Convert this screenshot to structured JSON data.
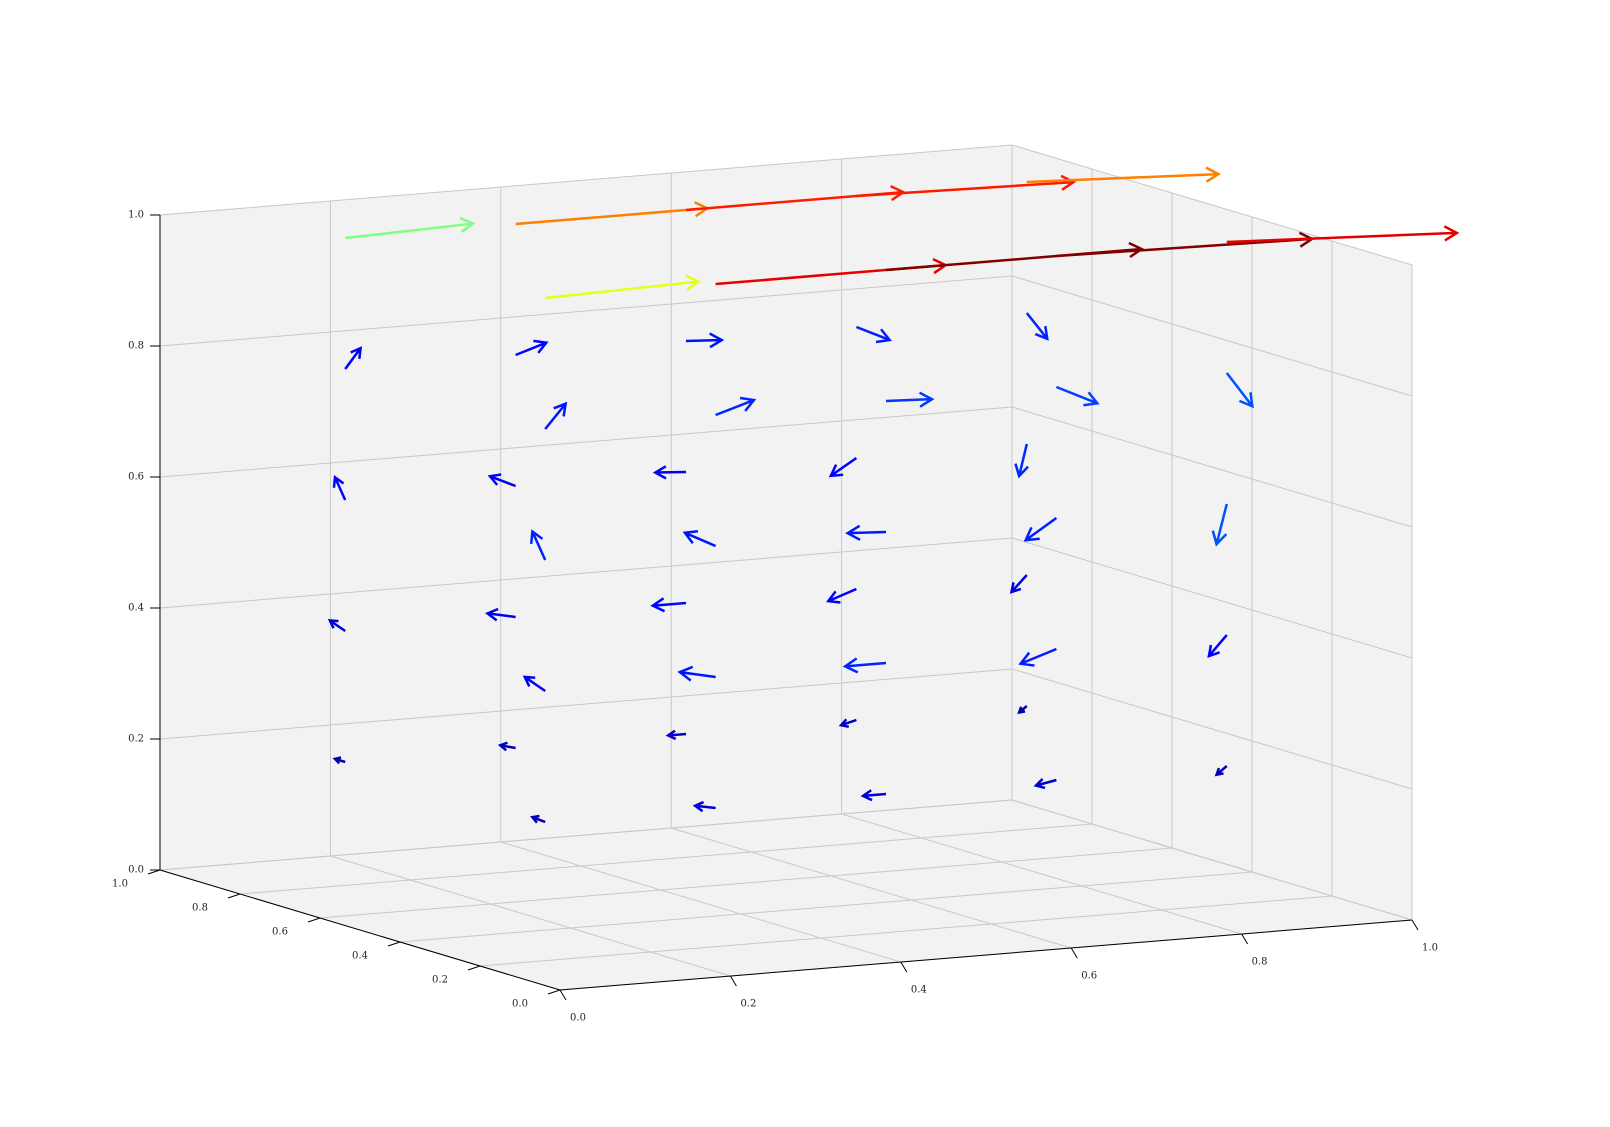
{
  "chart_data": {
    "type": "quiver3d",
    "xlim": [
      0,
      1
    ],
    "ylim": [
      0,
      1
    ],
    "zlim": [
      0,
      1
    ],
    "xticks": [
      {
        "value": 0,
        "label": "0.0"
      },
      {
        "value": 0.2,
        "label": "0.2"
      },
      {
        "value": 0.4,
        "label": "0.4"
      },
      {
        "value": 0.6,
        "label": "0.6"
      },
      {
        "value": 0.8,
        "label": "0.8"
      },
      {
        "value": 1,
        "label": "1.0"
      }
    ],
    "yticks": [
      {
        "value": 0,
        "label": "0.0"
      },
      {
        "value": 0.2,
        "label": "0.2"
      },
      {
        "value": 0.4,
        "label": "0.4"
      },
      {
        "value": 0.6,
        "label": "0.6"
      },
      {
        "value": 0.8,
        "label": "0.8"
      },
      {
        "value": 1,
        "label": "1.0"
      }
    ],
    "zticks": [
      {
        "value": 0,
        "label": "0.0"
      },
      {
        "value": 0.2,
        "label": "0.2"
      },
      {
        "value": 0.4,
        "label": "0.4"
      },
      {
        "value": 0.6,
        "label": "0.6"
      },
      {
        "value": 0.8,
        "label": "0.8"
      },
      {
        "value": 1,
        "label": "1.0"
      }
    ],
    "colormap": "jet",
    "grid": true,
    "arrows": {
      "x": [
        0.1,
        0.3,
        0.5,
        0.7,
        0.9,
        0.1,
        0.3,
        0.5,
        0.7,
        0.9,
        0.1,
        0.3,
        0.5,
        0.7,
        0.9,
        0.1,
        0.3,
        0.5,
        0.7,
        0.9,
        0.1,
        0.3,
        0.5,
        0.7,
        0.9,
        0.1,
        0.3,
        0.5,
        0.7,
        0.9,
        0.1,
        0.3,
        0.5,
        0.7,
        0.9,
        0.1,
        0.3,
        0.5,
        0.7,
        0.9,
        0.1,
        0.3,
        0.5,
        0.7,
        0.9,
        0.1,
        0.3,
        0.5,
        0.7,
        0.9
      ],
      "y": [
        0.25,
        0.25,
        0.25,
        0.25,
        0.25,
        0.75,
        0.75,
        0.75,
        0.75,
        0.75,
        0.25,
        0.25,
        0.25,
        0.25,
        0.25,
        0.75,
        0.75,
        0.75,
        0.75,
        0.75,
        0.25,
        0.25,
        0.25,
        0.25,
        0.25,
        0.75,
        0.75,
        0.75,
        0.75,
        0.75,
        0.25,
        0.25,
        0.25,
        0.25,
        0.25,
        0.75,
        0.75,
        0.75,
        0.75,
        0.75,
        0.25,
        0.25,
        0.25,
        0.25,
        0.25,
        0.75,
        0.75,
        0.75,
        0.75,
        0.75
      ],
      "z": [
        0.2,
        0.2,
        0.2,
        0.2,
        0.2,
        0.2,
        0.2,
        0.2,
        0.2,
        0.2,
        0.4,
        0.4,
        0.4,
        0.4,
        0.4,
        0.4,
        0.4,
        0.4,
        0.4,
        0.4,
        0.6,
        0.6,
        0.6,
        0.6,
        0.6,
        0.6,
        0.6,
        0.6,
        0.6,
        0.6,
        0.8,
        0.8,
        0.8,
        0.8,
        0.8,
        0.8,
        0.8,
        0.8,
        0.8,
        0.8,
        1,
        1,
        1,
        1,
        1,
        1,
        1,
        1,
        1,
        1
      ],
      "u": [
        -0.05,
        -0.08,
        -0.09,
        -0.08,
        -0.04,
        -0.04,
        -0.06,
        -0.07,
        -0.06,
        -0.03,
        -0.08,
        -0.14,
        -0.16,
        -0.14,
        -0.07,
        -0.06,
        -0.11,
        -0.13,
        -0.11,
        -0.06,
        -0.05,
        -0.12,
        -0.15,
        -0.12,
        -0.04,
        -0.04,
        -0.1,
        -0.12,
        -0.1,
        -0.03,
        0.08,
        0.15,
        0.18,
        0.16,
        0.1,
        0.06,
        0.12,
        0.14,
        0.13,
        0.08,
        0.6,
        0.9,
        1.0,
        1.0,
        0.9,
        0.5,
        0.75,
        0.85,
        0.85,
        0.75
      ],
      "v": [
        0,
        0,
        0,
        0,
        0,
        0,
        0,
        0,
        0,
        0,
        0,
        0,
        0,
        0,
        0,
        0,
        0,
        0,
        0,
        0,
        0,
        0,
        0,
        0,
        0,
        0,
        0,
        0,
        0,
        0,
        0,
        0,
        0,
        0,
        0,
        0,
        0,
        0,
        0,
        0,
        0,
        0,
        0,
        0,
        0,
        0,
        0,
        0,
        0,
        0
      ],
      "w": [
        0.03,
        0.02,
        0,
        -0.02,
        -0.04,
        0.02,
        0.02,
        0,
        -0.02,
        -0.03,
        0.08,
        0.04,
        0,
        -0.06,
        -0.1,
        0.06,
        0.03,
        0,
        -0.05,
        -0.08,
        0.15,
        0.08,
        0.01,
        -0.1,
        -0.2,
        0.12,
        0.06,
        0.01,
        -0.08,
        -0.16,
        0.12,
        0.06,
        -0.01,
        -0.1,
        -0.18,
        0.1,
        0.05,
        -0.01,
        -0.08,
        -0.14,
        0.02,
        0,
        0,
        -0.02,
        -0.05,
        0.02,
        0,
        0,
        -0.02,
        -0.04
      ]
    }
  }
}
